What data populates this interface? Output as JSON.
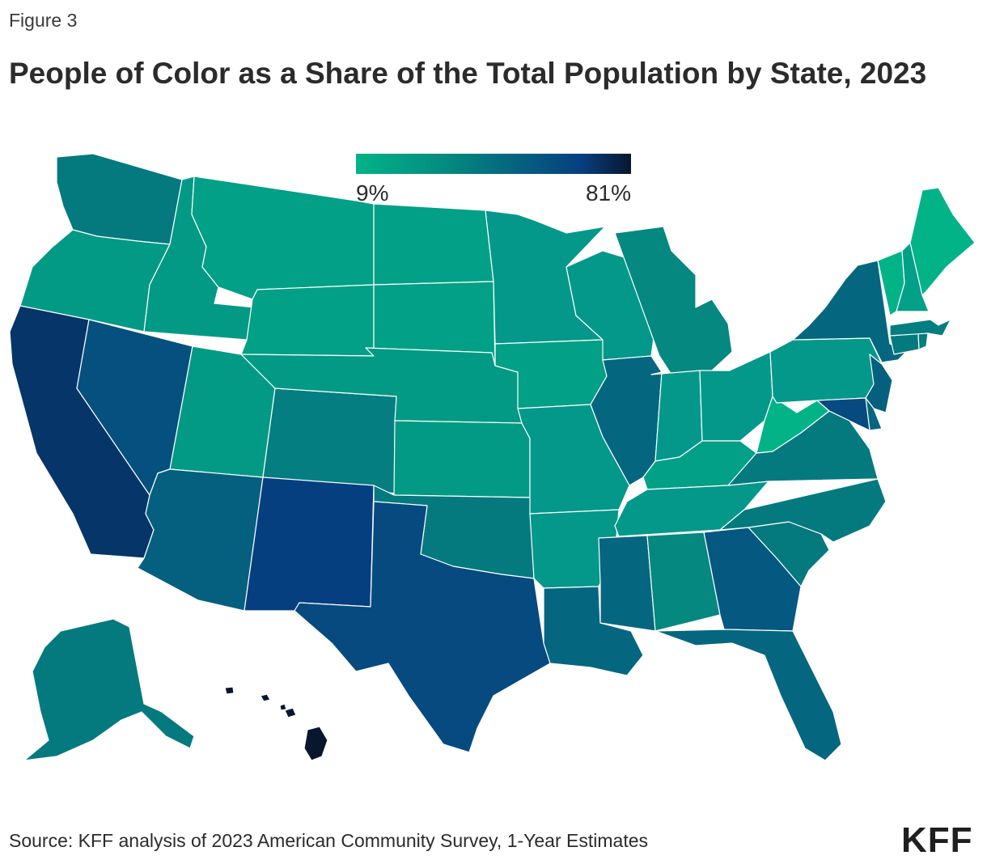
{
  "figure_label": "Figure 3",
  "title": "People of Color as a Share of the Total Population by State, 2023",
  "legend": {
    "min_label": "9%",
    "max_label": "81%",
    "colors": [
      "#02b388",
      "#04877f",
      "#05607f",
      "#063f80",
      "#08172e"
    ]
  },
  "source": "Source: KFF analysis of 2023 American Community Survey, 1-Year Estimates",
  "logo": "KFF",
  "map": {
    "scale": "continuous",
    "states": [
      {
        "name": "Washington",
        "color": "#047a7f"
      },
      {
        "name": "Oregon",
        "color": "#039a85"
      },
      {
        "name": "California",
        "color": "#063569"
      },
      {
        "name": "Idaho",
        "color": "#039a85"
      },
      {
        "name": "Nevada",
        "color": "#05507f"
      },
      {
        "name": "Montana",
        "color": "#02a086"
      },
      {
        "name": "Wyoming",
        "color": "#02a086"
      },
      {
        "name": "Utah",
        "color": "#039a85"
      },
      {
        "name": "Arizona",
        "color": "#05607f"
      },
      {
        "name": "Colorado",
        "color": "#047e80"
      },
      {
        "name": "New Mexico",
        "color": "#063f80"
      },
      {
        "name": "North Dakota",
        "color": "#02a086"
      },
      {
        "name": "South Dakota",
        "color": "#02a086"
      },
      {
        "name": "Nebraska",
        "color": "#039a85"
      },
      {
        "name": "Kansas",
        "color": "#039a85"
      },
      {
        "name": "Oklahoma",
        "color": "#047a7f"
      },
      {
        "name": "Texas",
        "color": "#064a80"
      },
      {
        "name": "Minnesota",
        "color": "#03988a"
      },
      {
        "name": "Iowa",
        "color": "#02a086"
      },
      {
        "name": "Missouri",
        "color": "#03988a"
      },
      {
        "name": "Arkansas",
        "color": "#03988a"
      },
      {
        "name": "Louisiana",
        "color": "#05677f"
      },
      {
        "name": "Wisconsin",
        "color": "#03988a"
      },
      {
        "name": "Illinois",
        "color": "#05677f"
      },
      {
        "name": "Michigan",
        "color": "#04887f"
      },
      {
        "name": "Indiana",
        "color": "#03988a"
      },
      {
        "name": "Ohio",
        "color": "#03988a"
      },
      {
        "name": "Kentucky",
        "color": "#02a086"
      },
      {
        "name": "Tennessee",
        "color": "#03988a"
      },
      {
        "name": "Mississippi",
        "color": "#05677f"
      },
      {
        "name": "Alabama",
        "color": "#04887f"
      },
      {
        "name": "Georgia",
        "color": "#055880"
      },
      {
        "name": "Florida",
        "color": "#05677f"
      },
      {
        "name": "South Carolina",
        "color": "#047a7f"
      },
      {
        "name": "North Carolina",
        "color": "#047a7f"
      },
      {
        "name": "Virginia",
        "color": "#047a7f"
      },
      {
        "name": "West Virginia",
        "color": "#02b388"
      },
      {
        "name": "Pennsylvania",
        "color": "#03988a"
      },
      {
        "name": "New York",
        "color": "#05677f"
      },
      {
        "name": "New Jersey",
        "color": "#05607f"
      },
      {
        "name": "Delaware",
        "color": "#05677f"
      },
      {
        "name": "Maryland",
        "color": "#064a80"
      },
      {
        "name": "Connecticut",
        "color": "#047a7f"
      },
      {
        "name": "Rhode Island",
        "color": "#047e80"
      },
      {
        "name": "Massachusetts",
        "color": "#047e80"
      },
      {
        "name": "Vermont",
        "color": "#02b388"
      },
      {
        "name": "New Hampshire",
        "color": "#02a086"
      },
      {
        "name": "Maine",
        "color": "#02b388"
      },
      {
        "name": "Alaska",
        "color": "#047a7f"
      },
      {
        "name": "Hawaii",
        "color": "#08172e"
      }
    ]
  }
}
